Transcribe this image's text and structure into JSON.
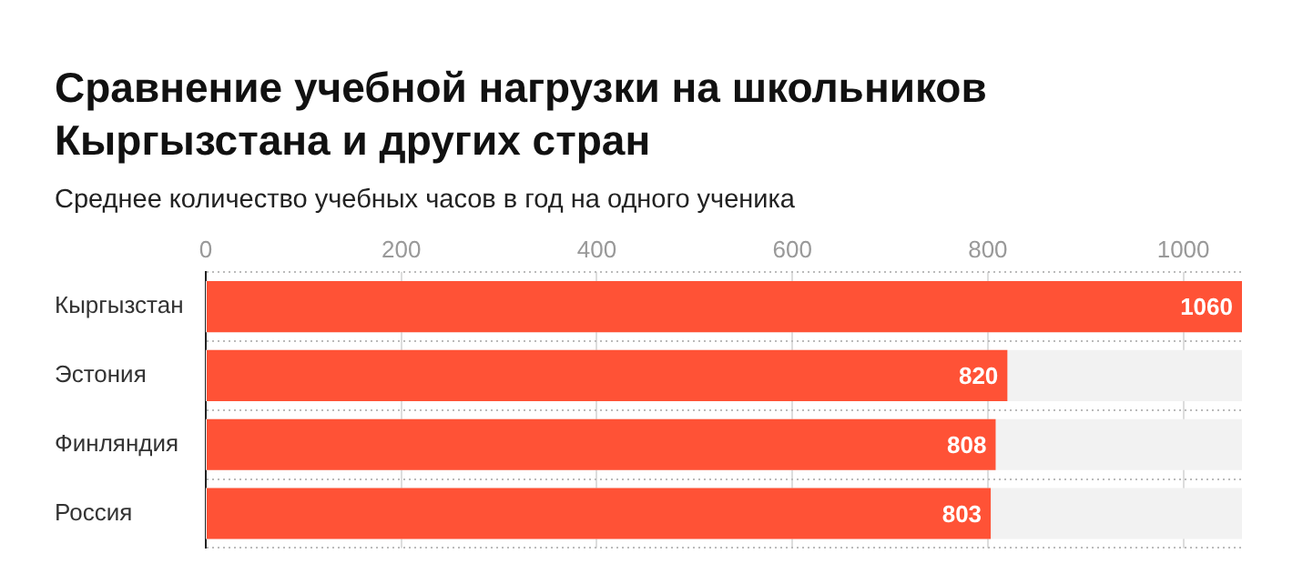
{
  "chart_data": {
    "type": "bar",
    "orientation": "horizontal",
    "title": "Сравнение учебной нагрузки на школьников Кыргызстана и других стран",
    "subtitle": "Среднее количество учебных часов в год на одного ученика",
    "categories": [
      "Кыргызстан",
      "Эстония",
      "Финляндия",
      "Россия"
    ],
    "values": [
      1060,
      820,
      808,
      803
    ],
    "color": "#ff5236",
    "xlim": [
      0,
      1060
    ],
    "xticks": [
      0,
      200,
      400,
      600,
      800,
      1000
    ],
    "grid": true,
    "data_labels": true
  }
}
